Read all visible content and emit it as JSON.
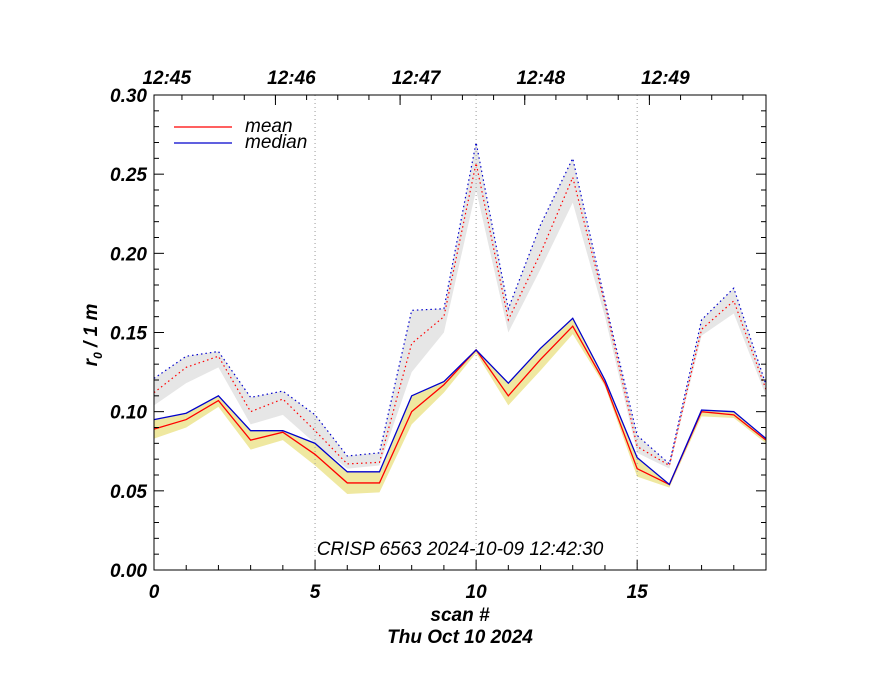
{
  "chart_data": {
    "type": "line",
    "xlabel": "scan #",
    "date_label": "Thu Oct 10 2024",
    "ylabel_main": "r",
    "ylabel_sub": "0",
    "ylabel_rest": " / 1 m",
    "annotation": "CRISP 6563 2024-10-09 12:42:30",
    "xlim": [
      0,
      19
    ],
    "ylim": [
      0.0,
      0.3
    ],
    "x_ticks": [
      0,
      5,
      10,
      15
    ],
    "x_tick_labels": [
      "0",
      "5",
      "10",
      "15"
    ],
    "y_ticks": [
      0.0,
      0.05,
      0.1,
      0.15,
      0.2,
      0.25,
      0.3
    ],
    "y_tick_labels": [
      "0.00",
      "0.05",
      "0.10",
      "0.15",
      "0.20",
      "0.25",
      "0.30"
    ],
    "top_axis": {
      "tick_positions": [
        -0.1,
        3.77,
        7.64,
        11.51,
        15.38
      ],
      "labels": [
        "12:45",
        "12:46",
        "12:47",
        "12:48",
        "12:49"
      ]
    },
    "vertical_gridlines_at": [
      5,
      10,
      15
    ],
    "legend": {
      "placement": "top-left",
      "entries": [
        {
          "name": "mean",
          "color": "#ff0000"
        },
        {
          "name": "median",
          "color": "#0000cc"
        }
      ]
    },
    "x": [
      0,
      1,
      2,
      3,
      4,
      5,
      6,
      7,
      8,
      9,
      10,
      11,
      12,
      13,
      14,
      15,
      16,
      17,
      18,
      19
    ],
    "series": [
      {
        "name": "mean",
        "style": "solid",
        "color": "#ff0000",
        "values": [
          0.089,
          0.095,
          0.107,
          0.082,
          0.087,
          0.073,
          0.055,
          0.055,
          0.1,
          0.117,
          0.139,
          0.11,
          0.133,
          0.154,
          0.118,
          0.064,
          0.054,
          0.1,
          0.098,
          0.082
        ]
      },
      {
        "name": "median",
        "style": "solid",
        "color": "#0000cc",
        "values": [
          0.095,
          0.099,
          0.11,
          0.088,
          0.088,
          0.08,
          0.062,
          0.062,
          0.11,
          0.119,
          0.139,
          0.118,
          0.14,
          0.159,
          0.12,
          0.071,
          0.054,
          0.101,
          0.1,
          0.083
        ]
      },
      {
        "name": "mean (upper)",
        "style": "dotted",
        "color": "#ff0000",
        "values": [
          0.112,
          0.128,
          0.135,
          0.1,
          0.108,
          0.088,
          0.067,
          0.068,
          0.143,
          0.16,
          0.257,
          0.158,
          0.2,
          0.248,
          0.168,
          0.078,
          0.066,
          0.152,
          0.17,
          0.114
        ]
      },
      {
        "name": "median (upper)",
        "style": "dotted",
        "color": "#0000cc",
        "values": [
          0.121,
          0.135,
          0.138,
          0.109,
          0.113,
          0.098,
          0.072,
          0.074,
          0.164,
          0.165,
          0.27,
          0.165,
          0.218,
          0.26,
          0.17,
          0.085,
          0.067,
          0.158,
          0.178,
          0.117
        ]
      }
    ],
    "bands": [
      {
        "color": "#e6e6e6",
        "lower": [
          0.104,
          0.118,
          0.128,
          0.092,
          0.098,
          0.08,
          0.064,
          0.066,
          0.125,
          0.15,
          0.24,
          0.15,
          0.19,
          0.232,
          0.16,
          0.074,
          0.064,
          0.148,
          0.162,
          0.11
        ],
        "upper": [
          0.121,
          0.135,
          0.138,
          0.109,
          0.113,
          0.098,
          0.072,
          0.074,
          0.164,
          0.165,
          0.27,
          0.165,
          0.218,
          0.26,
          0.17,
          0.085,
          0.067,
          0.158,
          0.178,
          0.117
        ]
      },
      {
        "color": "#efe8a0",
        "lower": [
          0.083,
          0.09,
          0.103,
          0.076,
          0.082,
          0.066,
          0.048,
          0.049,
          0.092,
          0.112,
          0.137,
          0.104,
          0.126,
          0.149,
          0.116,
          0.059,
          0.052,
          0.097,
          0.096,
          0.08
        ],
        "upper": [
          0.095,
          0.099,
          0.11,
          0.088,
          0.088,
          0.08,
          0.062,
          0.062,
          0.11,
          0.119,
          0.139,
          0.118,
          0.14,
          0.159,
          0.12,
          0.071,
          0.054,
          0.101,
          0.1,
          0.083
        ]
      }
    ]
  }
}
